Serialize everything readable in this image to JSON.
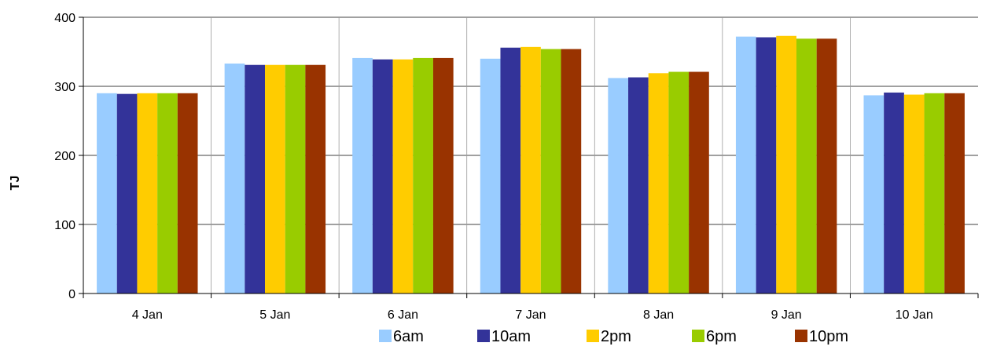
{
  "chart_data": {
    "type": "bar",
    "categories": [
      "4 Jan",
      "5 Jan",
      "6 Jan",
      "7 Jan",
      "8 Jan",
      "9 Jan",
      "10 Jan"
    ],
    "series": [
      {
        "name": "6am",
        "color": "#99CCFF",
        "values": [
          290,
          333,
          341,
          340,
          312,
          372,
          287
        ]
      },
      {
        "name": "10am",
        "color": "#333399",
        "values": [
          289,
          331,
          339,
          356,
          313,
          371,
          291
        ]
      },
      {
        "name": "2pm",
        "color": "#FFCC00",
        "values": [
          290,
          331,
          339,
          357,
          319,
          373,
          288
        ]
      },
      {
        "name": "6pm",
        "color": "#99CC00",
        "values": [
          290,
          331,
          341,
          354,
          321,
          369,
          290
        ]
      },
      {
        "name": "10pm",
        "color": "#993300",
        "values": [
          290,
          331,
          341,
          354,
          321,
          369,
          290
        ]
      }
    ],
    "ylabel": "TJ",
    "xlabel": "",
    "ylim": [
      0,
      400
    ],
    "yticks": [
      0,
      100,
      200,
      300,
      400
    ],
    "grid": true,
    "legend_position": "bottom"
  }
}
